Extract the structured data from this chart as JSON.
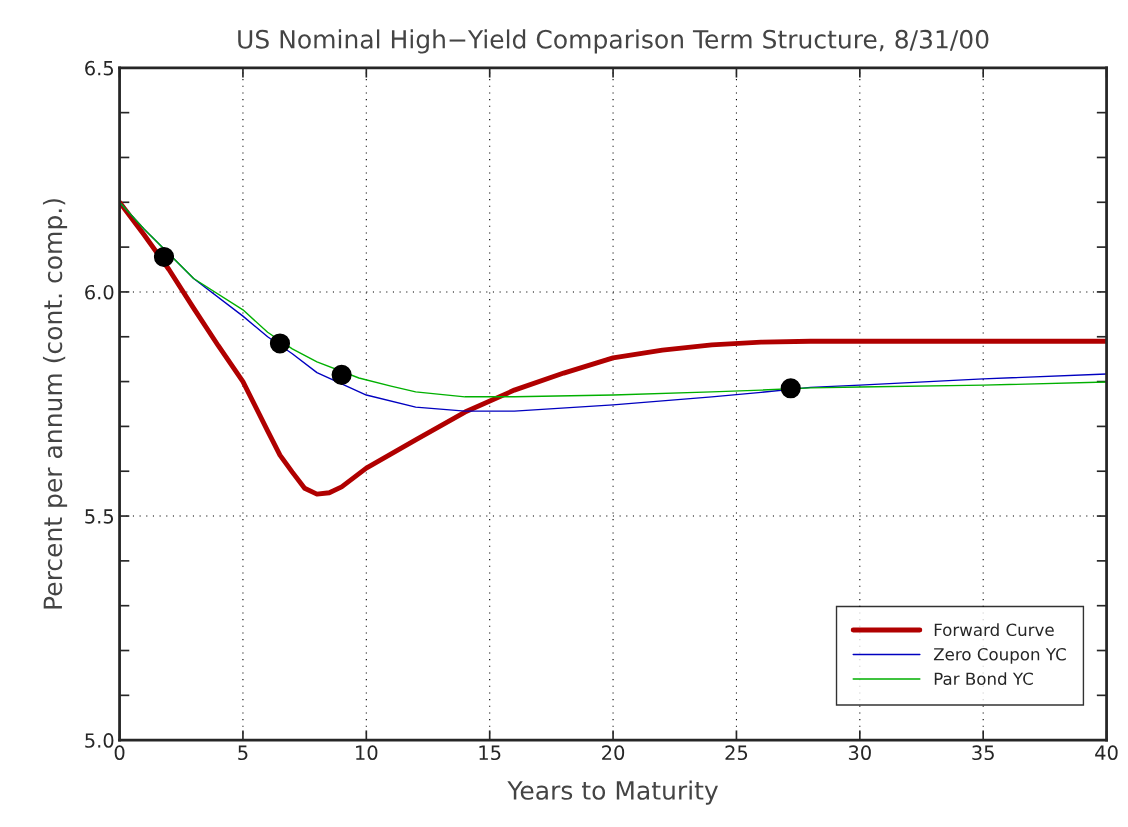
{
  "chart_data": {
    "type": "line",
    "title": "US Nominal High−Yield Comparison Term Structure, 8/31/00",
    "xlabel": "Years to Maturity",
    "ylabel": "Percent per annum (cont. comp.)",
    "xlim": [
      0,
      40
    ],
    "xticks": [
      0,
      5,
      10,
      15,
      20,
      25,
      30,
      35,
      40
    ],
    "ylim": [
      5.0,
      6.5
    ],
    "yticks": [
      {
        "value": 5.0,
        "label": "5.0"
      },
      {
        "value": 5.1,
        "label": null
      },
      {
        "value": 5.2,
        "label": null
      },
      {
        "value": 5.3,
        "label": null
      },
      {
        "value": 5.4,
        "label": null
      },
      5.5,
      {
        "value": 5.6,
        "label": null
      },
      {
        "value": 5.7,
        "label": null
      },
      {
        "value": 5.8,
        "label": null
      },
      {
        "value": 5.9,
        "label": null
      },
      {
        "value": 6.0,
        "label": "6.0"
      },
      {
        "value": 6.1,
        "label": null
      },
      {
        "value": 6.2,
        "label": null
      },
      {
        "value": 6.3,
        "label": null
      },
      {
        "value": 6.4,
        "label": null
      },
      6.5
    ],
    "grid": true,
    "legend": "bottom right",
    "series": [
      {
        "name": "Forward Curve",
        "color": "#b00000",
        "x": [
          0,
          1,
          2,
          3,
          4,
          5,
          6,
          6.5,
          7,
          7.5,
          8,
          8.5,
          9,
          10,
          12,
          14,
          16,
          18,
          20,
          22,
          24,
          26,
          28,
          32,
          36,
          40
        ],
        "values": [
          6.2,
          6.127,
          6.05,
          5.964,
          5.88,
          5.8,
          5.69,
          5.636,
          5.598,
          5.562,
          5.549,
          5.552,
          5.565,
          5.607,
          5.67,
          5.732,
          5.781,
          5.819,
          5.853,
          5.87,
          5.882,
          5.888,
          5.89,
          5.89,
          5.89,
          5.89
        ]
      },
      {
        "name": "Zero Coupon YC",
        "color": "#0000c0",
        "x": [
          0,
          1,
          3,
          5,
          6,
          7,
          8,
          10,
          12,
          14,
          16,
          20,
          24,
          26,
          28,
          30,
          35,
          40
        ],
        "values": [
          6.2,
          6.14,
          6.03,
          5.946,
          5.9,
          5.862,
          5.82,
          5.77,
          5.743,
          5.734,
          5.734,
          5.748,
          5.766,
          5.776,
          5.787,
          5.792,
          5.806,
          5.817
        ]
      },
      {
        "name": "Par Bond YC",
        "color": "#00b000",
        "x": [
          0,
          1,
          3,
          5,
          6,
          7,
          8,
          9.7,
          11,
          12,
          14,
          16,
          20,
          24,
          26,
          28,
          30,
          35,
          40
        ],
        "values": [
          6.2,
          6.14,
          6.03,
          5.96,
          5.91,
          5.873,
          5.844,
          5.808,
          5.79,
          5.777,
          5.766,
          5.766,
          5.77,
          5.777,
          5.781,
          5.786,
          5.788,
          5.792,
          5.799
        ]
      },
      {
        "type": "scatter",
        "color": "#000000",
        "marker": "circle",
        "x": [
          1.8,
          6.5,
          9.0,
          27.2
        ],
        "values": [
          6.078,
          5.885,
          5.815,
          5.785
        ]
      }
    ]
  }
}
